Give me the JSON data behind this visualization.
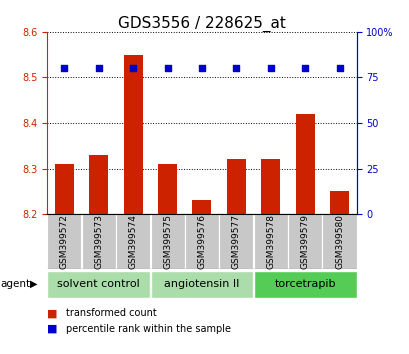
{
  "title": "GDS3556 / 228625_at",
  "samples": [
    "GSM399572",
    "GSM399573",
    "GSM399574",
    "GSM399575",
    "GSM399576",
    "GSM399577",
    "GSM399578",
    "GSM399579",
    "GSM399580"
  ],
  "transformed_counts": [
    8.31,
    8.33,
    8.55,
    8.31,
    8.23,
    8.32,
    8.32,
    8.42,
    8.25
  ],
  "percentile_ranks": [
    80,
    80,
    80,
    80,
    80,
    80,
    80,
    80,
    80
  ],
  "ylim_left": [
    8.2,
    8.6
  ],
  "ylim_right": [
    0,
    100
  ],
  "yticks_left": [
    8.2,
    8.3,
    8.4,
    8.5,
    8.6
  ],
  "yticks_right": [
    0,
    25,
    50,
    75,
    100
  ],
  "bar_color": "#cc2200",
  "dot_color": "#0000cc",
  "groups": [
    {
      "label": "solvent control",
      "start": 0,
      "end": 3,
      "color": "#aaddaa"
    },
    {
      "label": "angiotensin II",
      "start": 3,
      "end": 6,
      "color": "#aaddaa"
    },
    {
      "label": "torcetrapib",
      "start": 6,
      "end": 9,
      "color": "#55cc55"
    }
  ],
  "agent_label": "agent",
  "legend_bar_label": "transformed count",
  "legend_dot_label": "percentile rank within the sample",
  "background_color": "#ffffff",
  "plot_bg_color": "#ffffff",
  "label_area_color": "#c8c8c8",
  "grid_color": "#000000",
  "left_axis_color": "#cc2200",
  "right_axis_color": "#0000cc",
  "title_fontsize": 11,
  "tick_fontsize": 7,
  "sample_fontsize": 6.5,
  "label_fontsize": 7.5,
  "group_fontsize": 8
}
